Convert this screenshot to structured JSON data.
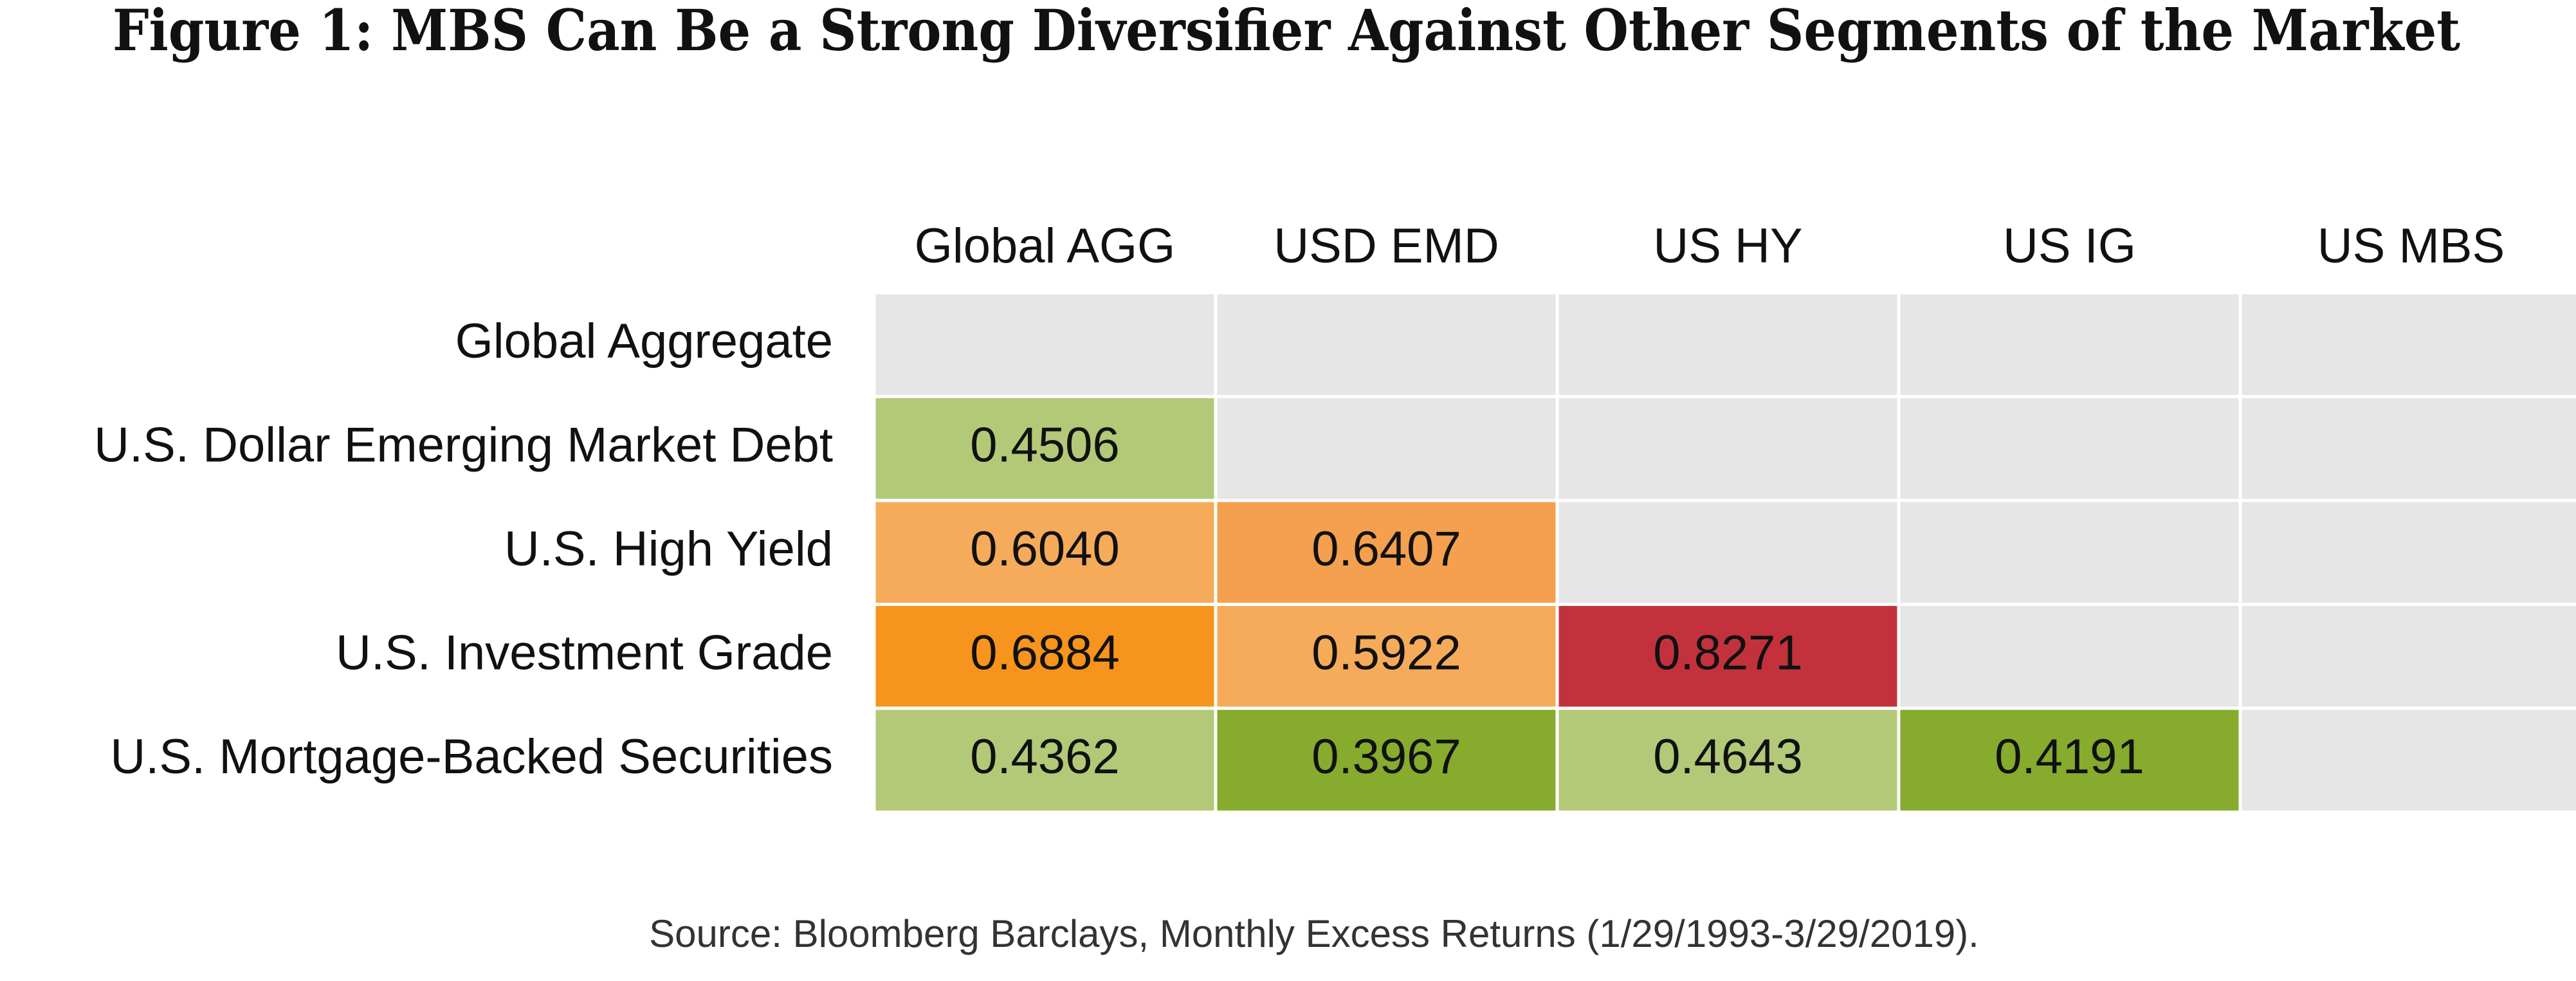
{
  "chart_data": {
    "type": "heatmap",
    "title": "Figure 1: MBS Can Be a Strong Diversifier Against Other Segments of the Market",
    "columns": [
      "Global AGG",
      "USD EMD",
      "US HY",
      "US IG",
      "US MBS"
    ],
    "rows": [
      "Global Aggregate",
      "U.S. Dollar Emerging Market Debt",
      "U.S. High Yield",
      "U.S. Investment Grade",
      "U.S. Mortgage-Backed Securities"
    ],
    "values": [
      [
        null,
        null,
        null,
        null,
        null
      ],
      [
        0.4506,
        null,
        null,
        null,
        null
      ],
      [
        0.604,
        0.6407,
        null,
        null,
        null
      ],
      [
        0.6884,
        0.5922,
        0.8271,
        null,
        null
      ],
      [
        0.4362,
        0.3967,
        0.4643,
        0.4191,
        null
      ]
    ],
    "value_labels": [
      [
        null,
        null,
        null,
        null,
        null
      ],
      [
        "0.4506",
        null,
        null,
        null,
        null
      ],
      [
        "0.6040",
        "0.6407",
        null,
        null,
        null
      ],
      [
        "0.6884",
        "0.5922",
        "0.8271",
        null,
        null
      ],
      [
        "0.4362",
        "0.3967",
        "0.4643",
        "0.4191",
        null
      ]
    ],
    "colors": [
      [
        "#e6e6e6",
        "#e6e6e6",
        "#e6e6e6",
        "#e6e6e6",
        "#e6e6e6"
      ],
      [
        "#b3c977",
        "#e6e6e6",
        "#e6e6e6",
        "#e6e6e6",
        "#e6e6e6"
      ],
      [
        "#f6ab5a",
        "#f4a04e",
        "#e6e6e6",
        "#e6e6e6",
        "#e6e6e6"
      ],
      [
        "#f7941d",
        "#f6ab5a",
        "#c3323c",
        "#e6e6e6",
        "#e6e6e6"
      ],
      [
        "#b3c977",
        "#86ab2d",
        "#b3c977",
        "#86ab2d",
        "#e6e6e6"
      ]
    ],
    "note": "Source: Bloomberg Barclays, Monthly Excess Returns (1/29/1993-3/29/2019)."
  }
}
